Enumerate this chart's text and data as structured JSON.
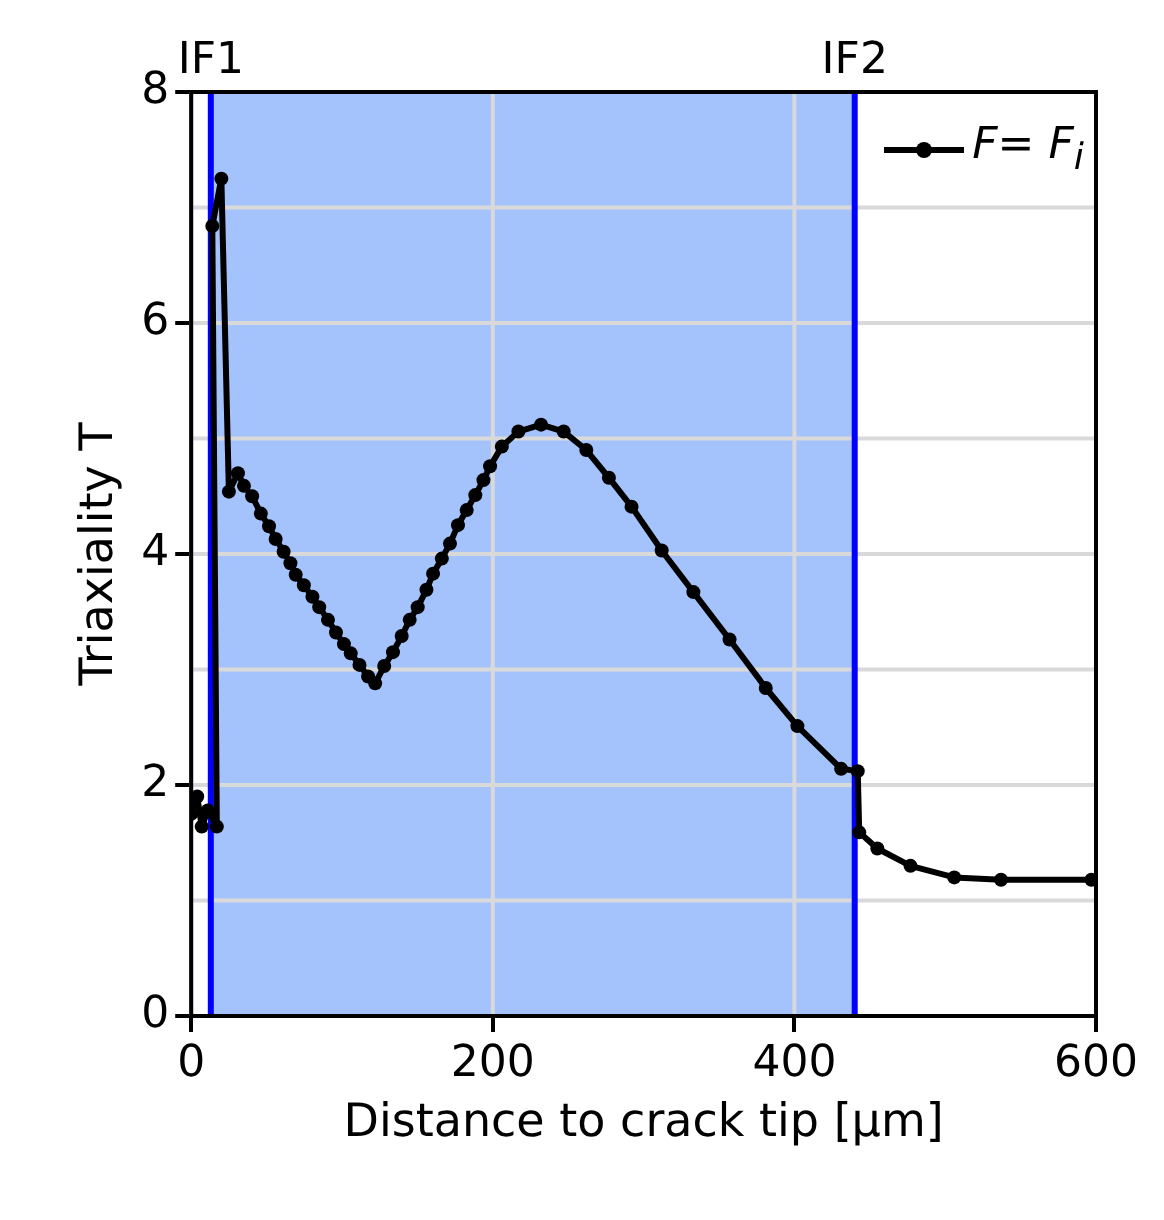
{
  "chart_data": {
    "type": "line",
    "xlabel": "Distance to crack tip [µm]",
    "ylabel": "Triaxiality T",
    "xlim": [
      0,
      600
    ],
    "xticks": [
      0,
      200,
      400,
      600
    ],
    "ylim": [
      0,
      8
    ],
    "yticks": [
      0,
      {
        "value": 1,
        "label": null
      },
      2,
      {
        "value": 3,
        "label": null
      },
      4,
      {
        "value": 5,
        "label": null
      },
      6,
      {
        "value": 7,
        "label": null
      },
      8
    ],
    "grid": true,
    "legend": "top right",
    "marker": "circle",
    "line_style": "solid",
    "bands": [
      {
        "axis": "x",
        "from": 13,
        "to": 440,
        "color": "#a4c2fb"
      }
    ],
    "ref_lines": [
      {
        "axis": "x",
        "value": 13,
        "label": "IF1",
        "color": "#0000ff"
      },
      {
        "axis": "x",
        "value": 440,
        "label": "IF2",
        "color": "#0000ff"
      }
    ],
    "series": [
      {
        "name": "F= F$_{i}$",
        "color": "#000000",
        "x": [
          0,
          4,
          7,
          11,
          17,
          14,
          20,
          25,
          31,
          35,
          40.4,
          46.2,
          51.6,
          56,
          61.3,
          65.8,
          69.3,
          74.7,
          80.4,
          84.9,
          90.7,
          96,
          101.3,
          105.8,
          111.6,
          117.3,
          122,
          128,
          133.8,
          139.6,
          144.9,
          150.2,
          156,
          160.4,
          166.2,
          171.6,
          176.9,
          182.7,
          188.4,
          193.8,
          198.2,
          206,
          217,
          232,
          247,
          262,
          277,
          292,
          312,
          333,
          357,
          381,
          402,
          431,
          442,
          443,
          455,
          477,
          506,
          537,
          597
        ],
        "values": [
          1.75,
          1.9,
          1.64,
          1.78,
          1.64,
          6.84,
          7.25,
          4.54,
          4.7,
          4.59,
          4.5,
          4.35,
          4.24,
          4.13,
          4.02,
          3.92,
          3.82,
          3.73,
          3.63,
          3.54,
          3.43,
          3.32,
          3.22,
          3.14,
          3.04,
          2.94,
          2.88,
          3.03,
          3.15,
          3.29,
          3.43,
          3.54,
          3.69,
          3.83,
          3.96,
          4.09,
          4.25,
          4.38,
          4.51,
          4.64,
          4.76,
          4.93,
          5.06,
          5.12,
          5.06,
          4.9,
          4.66,
          4.41,
          4.03,
          3.67,
          3.26,
          2.84,
          2.51,
          2.14,
          2.12,
          1.59,
          1.45,
          1.3,
          1.2,
          1.18,
          1.18
        ]
      }
    ]
  }
}
